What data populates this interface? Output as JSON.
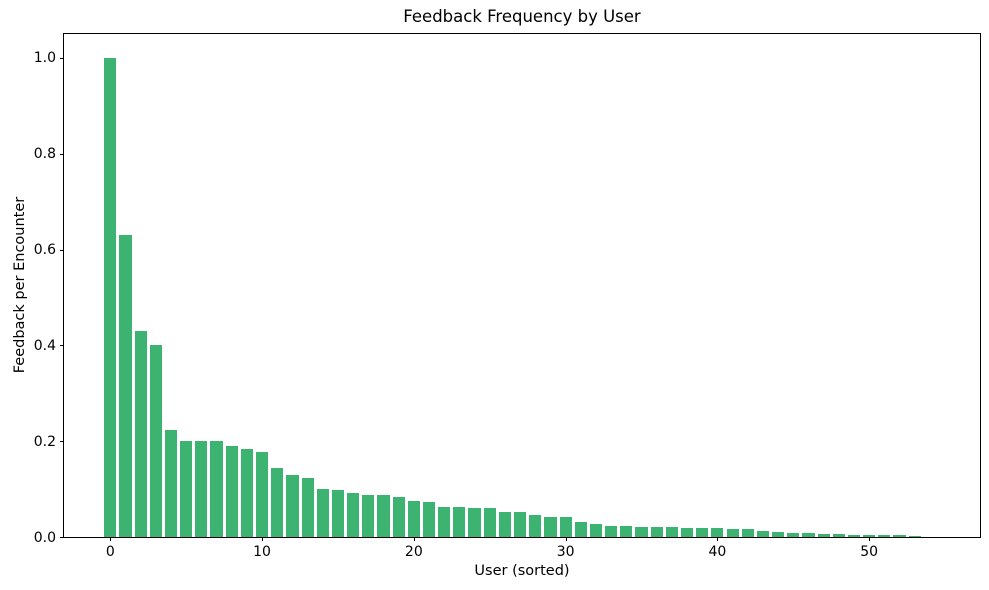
{
  "figure": {
    "title": "Feedback Frequency by User",
    "xlabel": "User (sorted)",
    "ylabel": "Feedback per Encounter"
  },
  "colors": {
    "bar_fill": "#3cb371",
    "axis": "#000000",
    "background": "#ffffff",
    "text": "#000000"
  },
  "chart_data": {
    "type": "bar",
    "title": "Feedback Frequency by User",
    "xlabel": "User (sorted)",
    "ylabel": "Feedback per Encounter",
    "bar_color": "#3cb371",
    "bar_width": 0.8,
    "grid": false,
    "legend": null,
    "xlim": [
      -3.05,
      57.3
    ],
    "ylim": [
      0,
      1.05
    ],
    "xticks": {
      "values": [
        0,
        10,
        20,
        30,
        40,
        50
      ],
      "labels": [
        "0",
        "10",
        "20",
        "30",
        "40",
        "50"
      ]
    },
    "yticks": {
      "values": [
        0,
        0.2,
        0.4,
        0.6,
        0.8,
        1.0
      ],
      "labels": [
        "0.0",
        "0.2",
        "0.4",
        "0.6",
        "0.8",
        "1.0"
      ]
    },
    "x": [
      0,
      1,
      2,
      3,
      4,
      5,
      6,
      7,
      8,
      9,
      10,
      11,
      12,
      13,
      14,
      15,
      16,
      17,
      18,
      19,
      20,
      21,
      22,
      23,
      24,
      25,
      26,
      27,
      28,
      29,
      30,
      31,
      32,
      33,
      34,
      35,
      36,
      37,
      38,
      39,
      40,
      41,
      42,
      43,
      44,
      45,
      46,
      47,
      48,
      49,
      50,
      51,
      52,
      53
    ],
    "values": [
      1.0,
      0.63,
      0.43,
      0.401,
      0.223,
      0.201,
      0.2,
      0.2,
      0.189,
      0.183,
      0.177,
      0.145,
      0.129,
      0.124,
      0.1,
      0.099,
      0.091,
      0.087,
      0.087,
      0.084,
      0.076,
      0.074,
      0.063,
      0.062,
      0.061,
      0.06,
      0.053,
      0.052,
      0.047,
      0.041,
      0.041,
      0.032,
      0.027,
      0.023,
      0.022,
      0.021,
      0.021,
      0.02,
      0.019,
      0.018,
      0.018,
      0.017,
      0.016,
      0.013,
      0.01,
      0.008,
      0.008,
      0.007,
      0.006,
      0.005,
      0.004,
      0.004,
      0.004,
      0.003
    ]
  }
}
